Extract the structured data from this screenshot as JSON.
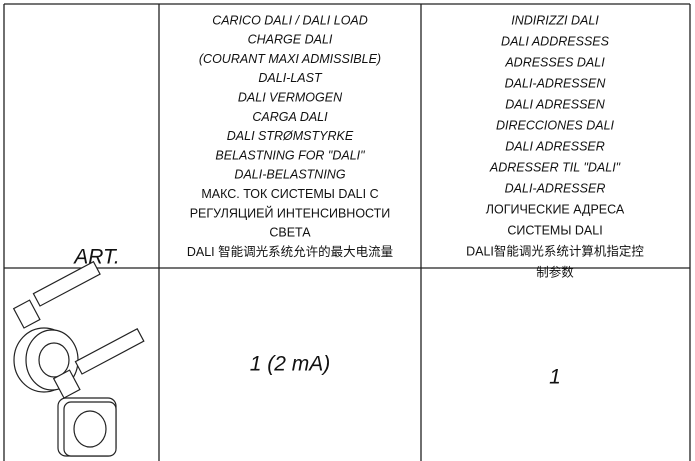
{
  "table": {
    "header": [
      "ART.",
      {
        "italic": [
          "CARICO DALI / DALI LOAD",
          "CHARGE DALI",
          "(COURANT MAXI ADMISSIBLE)",
          "DALI-LAST",
          "DALI VERMOGEN",
          "CARGA DALI",
          "DALI STRØMSTYRKE",
          "BELASTNING FOR \"DALI\"",
          "DALI-BELASTNING"
        ],
        "upright": [
          "МАКС. ТОК СИСТЕМЫ DALI С",
          "РЕГУЛЯЦИЕЙ ИНТЕНСИВНОСТИ",
          "СВЕТА",
          "DALI 智能调光系统允许的最大电流量"
        ]
      },
      {
        "italic": [
          "INDIRIZZI DALI",
          "DALI ADDRESSES",
          "ADRESSES DALI",
          "DALI-ADRESSEN",
          "DALI ADRESSEN",
          "DIRECCIONES DALI",
          "DALI ADRESSER",
          "ADRESSER TIL \"DALI\"",
          "DALI-ADRESSER"
        ],
        "upright": [
          "ЛОГИЧЕСКИЕ АДРЕСА",
          "СИСТЕМЫ DALI",
          "DALI智能调光系统计算机指定控",
          "制参数"
        ]
      }
    ],
    "rows": [
      [
        "1 (2 mA)",
        "1"
      ]
    ]
  }
}
